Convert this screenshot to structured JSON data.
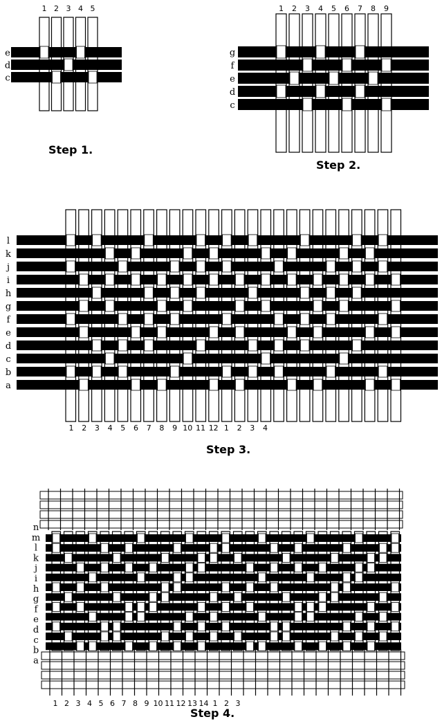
{
  "steps": [
    {
      "caption": "Step 1.",
      "column_labels": [
        "1",
        "2",
        "3",
        "4",
        "5"
      ],
      "row_labels": [
        "e",
        "d",
        "c"
      ]
    },
    {
      "caption": "Step 2.",
      "column_labels": [
        "1",
        "2",
        "3",
        "4",
        "5",
        "6",
        "7",
        "8",
        "9"
      ],
      "row_labels": [
        "g",
        "f",
        "e",
        "d",
        "c"
      ]
    },
    {
      "caption": "Step 3.",
      "column_labels": [
        "1",
        "2",
        "3",
        "4",
        "5",
        "6",
        "7",
        "8",
        "9",
        "10",
        "11",
        "12",
        "1",
        "2",
        "3",
        "4"
      ],
      "row_labels": [
        "l",
        "k",
        "j",
        "i",
        "h",
        "g",
        "f",
        "e",
        "d",
        "c",
        "b",
        "a"
      ]
    },
    {
      "caption": "Step 4.",
      "column_labels": [
        "1",
        "2",
        "3",
        "4",
        "5",
        "6",
        "7",
        "8",
        "9",
        "10",
        "11",
        "12",
        "13",
        "14",
        "1",
        "2",
        "3"
      ],
      "row_labels": [
        "n",
        "m",
        "l",
        "k",
        "j",
        "i",
        "h",
        "g",
        "f",
        "e",
        "d",
        "c",
        "b",
        "a"
      ]
    }
  ],
  "colors": {
    "weft": "#000000",
    "warp": "#ffffff",
    "outline": "#000000"
  }
}
